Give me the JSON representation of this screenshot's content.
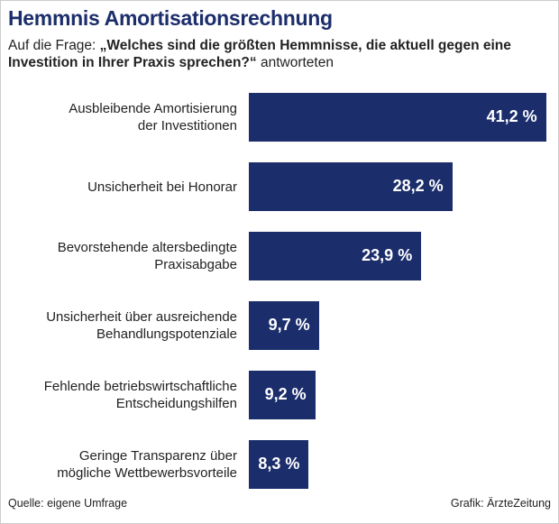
{
  "chart_data": {
    "type": "hbar",
    "title": "Hemmnis Amortisationsrechnung",
    "subtitle": [
      "Auf die Frage:",
      "„Welches sind die größten Hemmnisse, die aktuell gegen eine Investition in Ihrer Praxis sprechen?“",
      "antworteten"
    ],
    "categories": [
      "Ausbleibende Amortisierung\nder Investitionen",
      "Unsicherheit bei Honorar",
      "Bevorstehende altersbedingte\nPraxisabgabe",
      "Unsicherheit über ausreichende\nBehandlungspotenziale",
      "Fehlende betriebswirtschaftliche\nEntscheidungshilfen",
      "Geringe Transparenz über\nmögliche Wettbewerbsvorteile"
    ],
    "values": [
      41.2,
      28.2,
      23.9,
      9.7,
      9.2,
      8.3
    ],
    "value_labels": [
      "41,2 %",
      "28,2 %",
      "23,9 %",
      "9,7 %",
      "9,2 %",
      "8,3 %"
    ],
    "color": "#1b2d6b",
    "xlim": [
      0,
      42
    ],
    "source": "Quelle: eigene Umfrage",
    "credit": "Grafik: ÄrzteZeitung"
  }
}
